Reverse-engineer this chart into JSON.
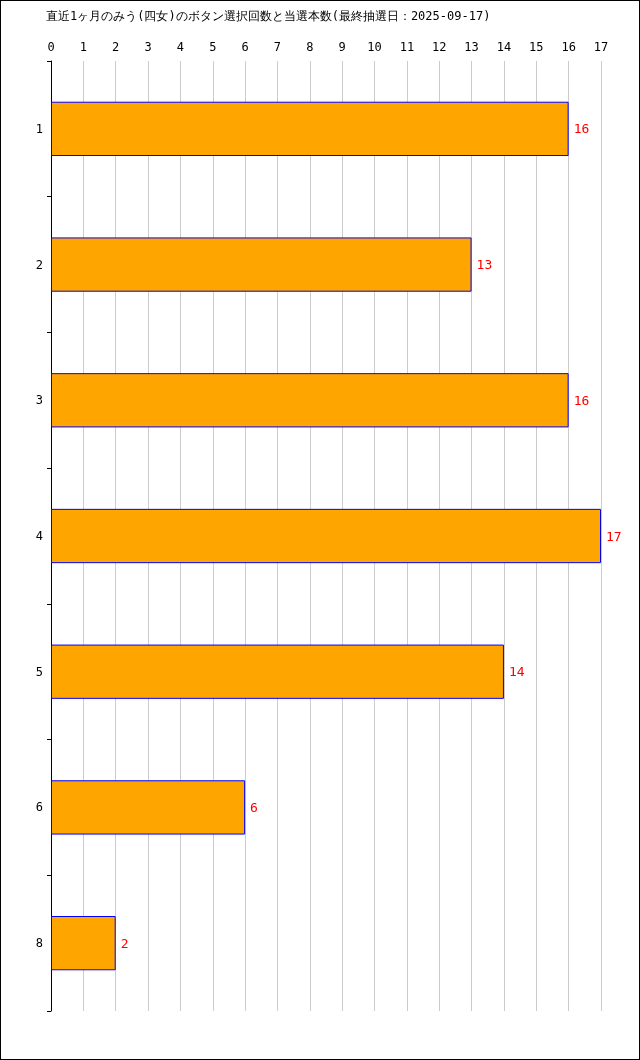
{
  "chart_data": {
    "type": "bar",
    "orientation": "horizontal",
    "title": "直近1ヶ月のみう(四女)のボタン選択回数と当選本数(最終抽選日：2025-09-17)",
    "categories": [
      "1",
      "2",
      "3",
      "4",
      "5",
      "6",
      "8"
    ],
    "values": [
      16,
      13,
      16,
      17,
      14,
      6,
      2
    ],
    "color": "#ffa500",
    "xlim": [
      0,
      17
    ],
    "xticks": [
      0,
      1,
      2,
      3,
      4,
      5,
      6,
      7,
      8,
      9,
      10,
      11,
      12,
      13,
      14,
      15,
      16,
      17
    ],
    "grid": "x",
    "data_labels": true
  }
}
